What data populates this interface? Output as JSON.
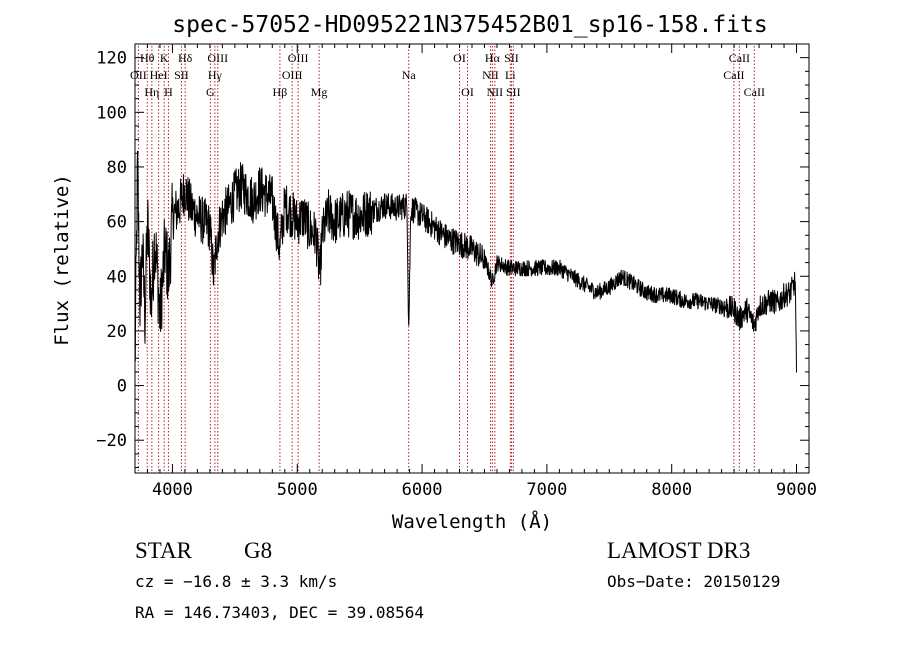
{
  "chart_data": {
    "type": "line",
    "title": "spec-57052-HD095221N375452B01_sp16-158.fits",
    "xlabel": "Wavelength (Å)",
    "ylabel": "Flux (relative)",
    "xlim": [
      3700,
      9100
    ],
    "ylim": [
      -32,
      125
    ],
    "xticks": [
      4000,
      5000,
      6000,
      7000,
      8000,
      9000
    ],
    "yticks": [
      -20,
      0,
      20,
      40,
      60,
      80,
      100,
      120
    ],
    "xtick_labels": [
      "4000",
      "5000",
      "6000",
      "7000",
      "8000",
      "9000"
    ],
    "ytick_labels": [
      "−20",
      "0",
      "20",
      "40",
      "60",
      "80",
      "100",
      "120"
    ],
    "series": [
      {
        "name": "flux",
        "anchors_x": [
          3700,
          3720,
          3740,
          3760,
          3780,
          3800,
          3830,
          3860,
          3900,
          3940,
          3970,
          4000,
          4050,
          4100,
          4150,
          4200,
          4250,
          4300,
          4330,
          4360,
          4400,
          4450,
          4500,
          4550,
          4600,
          4650,
          4700,
          4750,
          4800,
          4860,
          4900,
          4950,
          5000,
          5050,
          5100,
          5150,
          5180,
          5200,
          5250,
          5300,
          5400,
          5500,
          5600,
          5700,
          5800,
          5880,
          5893,
          5910,
          6000,
          6100,
          6200,
          6300,
          6400,
          6500,
          6563,
          6600,
          6700,
          6800,
          6900,
          7000,
          7100,
          7200,
          7300,
          7400,
          7500,
          7600,
          7700,
          7800,
          7900,
          8000,
          8100,
          8200,
          8300,
          8400,
          8500,
          8542,
          8600,
          8662,
          8700,
          8750,
          8800,
          8850,
          8900,
          8950,
          8990,
          9000
        ],
        "anchors_y": [
          5,
          80,
          30,
          50,
          25,
          60,
          30,
          55,
          25,
          50,
          40,
          62,
          65,
          72,
          65,
          62,
          60,
          58,
          40,
          55,
          62,
          65,
          70,
          73,
          70,
          68,
          72,
          70,
          68,
          50,
          66,
          63,
          60,
          62,
          57,
          55,
          40,
          55,
          63,
          60,
          63,
          62,
          64,
          66,
          65,
          66,
          20,
          65,
          62,
          58,
          54,
          52,
          50,
          46,
          38,
          45,
          43,
          43,
          43,
          43,
          43,
          40,
          37,
          34,
          36,
          40,
          37,
          34,
          33,
          33,
          31,
          31,
          30,
          29,
          28,
          24,
          28,
          22,
          29,
          30,
          31,
          30,
          33,
          34,
          38,
          3
        ]
      }
    ],
    "line_markers": [
      {
        "label": "OII",
        "x": 3727,
        "row": 1
      },
      {
        "label": "Hθ",
        "x": 3798,
        "row": 0
      },
      {
        "label": "Hη",
        "x": 3835,
        "row": 2
      },
      {
        "label": "HeI",
        "x": 3889,
        "row": 1
      },
      {
        "label": "K",
        "x": 3934,
        "row": 0
      },
      {
        "label": "H",
        "x": 3968,
        "row": 2
      },
      {
        "label": "SII",
        "x": 4072,
        "row": 1
      },
      {
        "label": "Hδ",
        "x": 4102,
        "row": 0
      },
      {
        "label": "G",
        "x": 4304,
        "row": 2
      },
      {
        "label": "Hγ",
        "x": 4340,
        "row": 1
      },
      {
        "label": "OIII",
        "x": 4363,
        "row": 0
      },
      {
        "label": "Hβ",
        "x": 4861,
        "row": 2
      },
      {
        "label": "OIII",
        "x": 4959,
        "row": 1
      },
      {
        "label": "OIII",
        "x": 5007,
        "row": 0
      },
      {
        "label": "Mg",
        "x": 5175,
        "row": 2
      },
      {
        "label": "Na",
        "x": 5893,
        "row": 1
      },
      {
        "label": "OI",
        "x": 6300,
        "row": 0
      },
      {
        "label": "OI",
        "x": 6364,
        "row": 2
      },
      {
        "label": "NII",
        "x": 6548,
        "row": 1
      },
      {
        "label": "Hα",
        "x": 6563,
        "row": 0
      },
      {
        "label": "NII",
        "x": 6583,
        "row": 2
      },
      {
        "label": "Li",
        "x": 6707,
        "row": 1
      },
      {
        "label": "SII",
        "x": 6716,
        "row": 0
      },
      {
        "label": "SII",
        "x": 6731,
        "row": 2
      },
      {
        "label": "CaII",
        "x": 8498,
        "row": 1
      },
      {
        "label": "CaII",
        "x": 8542,
        "row": 0
      },
      {
        "label": "CaII",
        "x": 8662,
        "row": 2
      }
    ]
  },
  "info": {
    "class": "STAR",
    "subclass": "G8",
    "survey": "LAMOST DR3",
    "cz": "cz = −16.8 ± 3.3 km/s",
    "obs_date": "Obs−Date: 20150129",
    "coords": "RA = 146.73403, DEC =  39.08564"
  }
}
